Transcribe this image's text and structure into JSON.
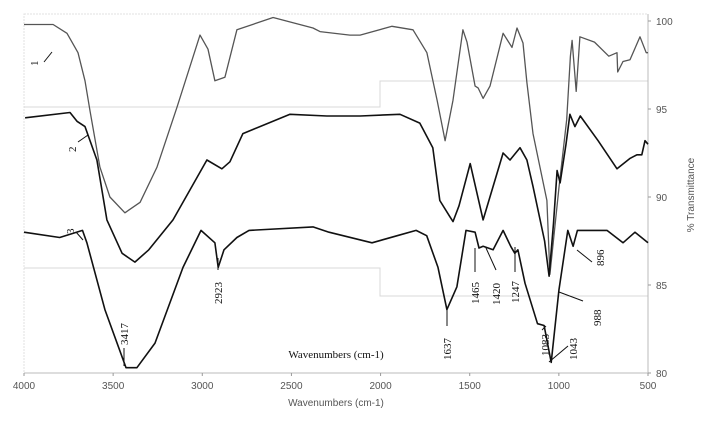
{
  "chart_data": {
    "type": "line",
    "title": "",
    "xlabel": "Wavenumbers (cm-1)",
    "inner_xlabel": "Wavenumbers (cm-1)",
    "ylabel": "% Transmittance",
    "xlim": [
      4000,
      500
    ],
    "ylim": [
      80,
      100
    ],
    "xticks": [
      "4000",
      "3500",
      "3000",
      "2500",
      "2000",
      "1500",
      "1000",
      "500"
    ],
    "yticks": [
      "100",
      "95",
      "90",
      "85",
      "80"
    ],
    "grid": false,
    "series": [
      {
        "name": "1",
        "color": "#555555",
        "points": [
          [
            4000,
            99.8
          ],
          [
            3837,
            99.8
          ],
          [
            3759,
            99.3
          ],
          [
            3697,
            98.2
          ],
          [
            3658,
            96.6
          ],
          [
            3630,
            94.9
          ],
          [
            3574,
            91.7
          ],
          [
            3518,
            90.0
          ],
          [
            3434,
            89.1
          ],
          [
            3349,
            89.7
          ],
          [
            3254,
            91.7
          ],
          [
            3142,
            95.1
          ],
          [
            3013,
            99.2
          ],
          [
            2968,
            98.4
          ],
          [
            2929,
            96.6
          ],
          [
            2873,
            96.8
          ],
          [
            2806,
            99.5
          ],
          [
            2603,
            100.2
          ],
          [
            2379,
            99.6
          ],
          [
            2340,
            99.4
          ],
          [
            2172,
            99.2
          ],
          [
            2115,
            99.2
          ],
          [
            1936,
            99.7
          ],
          [
            1818,
            99.5
          ],
          [
            1740,
            98.2
          ],
          [
            1683,
            95.5
          ],
          [
            1638,
            93.2
          ],
          [
            1594,
            95.5
          ],
          [
            1538,
            99.5
          ],
          [
            1515,
            98.8
          ],
          [
            1470,
            96.3
          ],
          [
            1453,
            96.2
          ],
          [
            1425,
            95.6
          ],
          [
            1386,
            96.3
          ],
          [
            1313,
            99.3
          ],
          [
            1263,
            98.5
          ],
          [
            1235,
            99.6
          ],
          [
            1201,
            98.75
          ],
          [
            1179,
            96.5
          ],
          [
            1145,
            93.6
          ],
          [
            1067,
            89.8
          ],
          [
            1050,
            85.6
          ],
          [
            1000,
            90.5
          ],
          [
            956,
            94.4
          ],
          [
            935,
            98.0
          ],
          [
            926,
            98.9
          ],
          [
            903,
            96.0
          ],
          [
            882,
            99.1
          ],
          [
            800,
            98.8
          ],
          [
            720,
            98.0
          ],
          [
            674,
            98.2
          ],
          [
            670,
            97.1
          ],
          [
            640,
            97.7
          ],
          [
            601,
            97.8
          ],
          [
            545,
            99.1
          ],
          [
            510,
            98.2
          ],
          [
            500,
            98.2
          ]
        ]
      },
      {
        "name": "2",
        "color": "#111111",
        "points": [
          [
            3994,
            94.5
          ],
          [
            3742,
            94.8
          ],
          [
            3703,
            94.3
          ],
          [
            3658,
            94.0
          ],
          [
            3591,
            92.1
          ],
          [
            3535,
            88.7
          ],
          [
            3450,
            86.8
          ],
          [
            3378,
            86.3
          ],
          [
            3300,
            87.0
          ],
          [
            3164,
            88.7
          ],
          [
            2974,
            92.1
          ],
          [
            2890,
            91.6
          ],
          [
            2845,
            92.0
          ],
          [
            2772,
            93.6
          ],
          [
            2508,
            94.7
          ],
          [
            2301,
            94.6
          ],
          [
            2115,
            94.6
          ],
          [
            1891,
            94.7
          ],
          [
            1780,
            94.2
          ],
          [
            1707,
            92.8
          ],
          [
            1668,
            89.8
          ],
          [
            1612,
            88.9
          ],
          [
            1594,
            88.6
          ],
          [
            1560,
            89.5
          ],
          [
            1497,
            91.9
          ],
          [
            1425,
            88.7
          ],
          [
            1313,
            92.5
          ],
          [
            1274,
            92.1
          ],
          [
            1218,
            92.8
          ],
          [
            1179,
            92.1
          ],
          [
            1145,
            90.6
          ],
          [
            1080,
            87.5
          ],
          [
            1055,
            85.5
          ],
          [
            1030,
            88.5
          ],
          [
            1010,
            91.5
          ],
          [
            993,
            90.8
          ],
          [
            960,
            93.0
          ],
          [
            938,
            94.7
          ],
          [
            910,
            94.0
          ],
          [
            880,
            94.6
          ],
          [
            780,
            93.2
          ],
          [
            674,
            91.6
          ],
          [
            600,
            92.2
          ],
          [
            562,
            92.4
          ],
          [
            535,
            92.4
          ],
          [
            517,
            93.2
          ],
          [
            500,
            93.0
          ]
        ]
      },
      {
        "name": "3",
        "color": "#111111",
        "points": [
          [
            4000,
            88.0
          ],
          [
            3800,
            87.7
          ],
          [
            3672,
            88.1
          ],
          [
            3647,
            87.4
          ],
          [
            3546,
            83.6
          ],
          [
            3428,
            80.3
          ],
          [
            3367,
            80.3
          ],
          [
            3265,
            81.7
          ],
          [
            3108,
            86.0
          ],
          [
            3007,
            88.1
          ],
          [
            2929,
            87.4
          ],
          [
            2911,
            86.0
          ],
          [
            2878,
            87.0
          ],
          [
            2806,
            87.7
          ],
          [
            2738,
            88.1
          ],
          [
            2379,
            88.3
          ],
          [
            2289,
            88.0
          ],
          [
            2048,
            87.4
          ],
          [
            1907,
            87.8
          ],
          [
            1801,
            88.1
          ],
          [
            1741,
            87.8
          ],
          [
            1678,
            86.0
          ],
          [
            1628,
            83.6
          ],
          [
            1572,
            84.9
          ],
          [
            1521,
            88.1
          ],
          [
            1470,
            88.0
          ],
          [
            1448,
            87.1
          ],
          [
            1425,
            87.2
          ],
          [
            1369,
            87.0
          ],
          [
            1313,
            88.1
          ],
          [
            1270,
            87.2
          ],
          [
            1247,
            86.8
          ],
          [
            1230,
            87.0
          ],
          [
            1190,
            85.1
          ],
          [
            1120,
            82.8
          ],
          [
            1083,
            82.7
          ],
          [
            1043,
            80.6
          ],
          [
            1000,
            84.7
          ],
          [
            950,
            88.1
          ],
          [
            920,
            87.2
          ],
          [
            896,
            88.1
          ],
          [
            832,
            88.1
          ],
          [
            730,
            88.1
          ],
          [
            640,
            87.4
          ],
          [
            573,
            88.0
          ],
          [
            500,
            87.4
          ]
        ]
      }
    ],
    "annotations": [
      "3417",
      "2923",
      "1637",
      "1465",
      "1420",
      "1247",
      "1083",
      "1043",
      "988",
      "896"
    ],
    "curve_labels": [
      "1",
      "2",
      "3"
    ]
  }
}
